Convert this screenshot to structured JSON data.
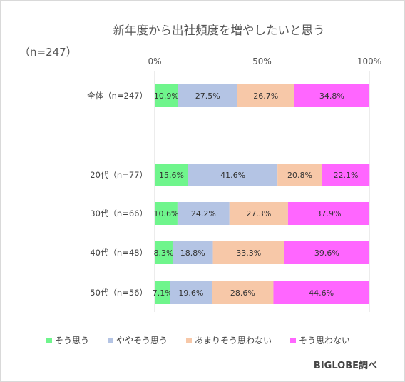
{
  "chart_data": {
    "type": "bar",
    "orientation": "horizontal",
    "stacked": true,
    "title": "新年度から出社頻度を増やしたいと思う",
    "subtitle": "（n=247）",
    "categories": [
      "全体（n=247）",
      "20代（n=77）",
      "30代（n=66）",
      "40代（n=48）",
      "50代（n=56）"
    ],
    "series": [
      {
        "name": "そう思う",
        "color": "#6ff58c",
        "values": [
          10.9,
          15.6,
          10.6,
          8.3,
          7.1
        ]
      },
      {
        "name": "ややそう思う",
        "color": "#b4c4e4",
        "values": [
          27.5,
          41.6,
          24.2,
          18.8,
          19.6
        ]
      },
      {
        "name": "あまりそう思わない",
        "color": "#f7c8a8",
        "values": [
          26.7,
          20.8,
          27.3,
          33.3,
          28.6
        ]
      },
      {
        "name": "そう思わない",
        "color": "#ff66ff",
        "values": [
          34.8,
          22.1,
          37.9,
          39.6,
          44.6
        ]
      }
    ],
    "value_labels": [
      [
        "10.9%",
        "15.6%",
        "10.6%",
        "8.3%",
        "7.1%"
      ],
      [
        "27.5%",
        "41.6%",
        "24.2%",
        "18.8%",
        "19.6%"
      ],
      [
        "26.7%",
        "20.8%",
        "27.3%",
        "33.3%",
        "28.6%"
      ],
      [
        "34.8%",
        "22.1%",
        "37.9%",
        "39.6%",
        "44.6%"
      ]
    ],
    "xticks": [
      0,
      50,
      100
    ],
    "xtick_labels": [
      "0%",
      "50%",
      "100%"
    ],
    "xlim": [
      0,
      100
    ],
    "grid": true,
    "legend_position": "bottom",
    "source_note": "BIGLOBE調べ"
  }
}
